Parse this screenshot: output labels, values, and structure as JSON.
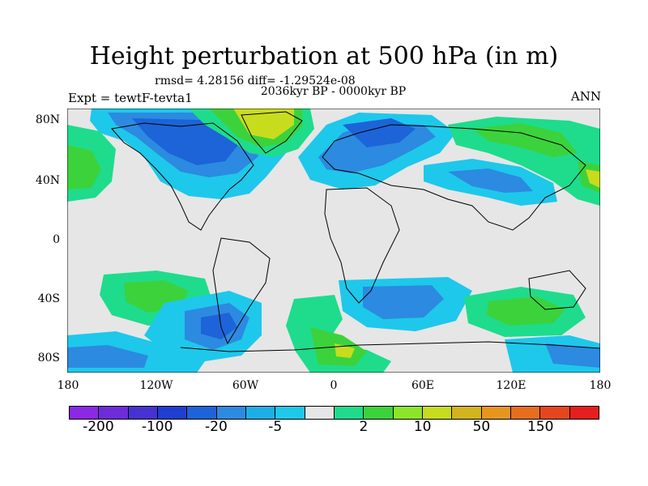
{
  "title": "Height perturbation at 500 hPa (in m)",
  "stats": "rmsd= 4.28156 diff= -1.29524e-08",
  "subtitle": "2036kyr BP - 0000kyr BP",
  "left_label": "Expt = tewtF-tevta1",
  "right_label": "ANN",
  "lat_labels": [
    "80N",
    "40N",
    "0",
    "40S",
    "80S"
  ],
  "lon_labels": [
    "180",
    "120W",
    "60W",
    "0",
    "60E",
    "120E",
    "180"
  ],
  "colorbar": {
    "colors": [
      "#8c28e6",
      "#6e2bd9",
      "#4632d2",
      "#1f3fd0",
      "#1c64d8",
      "#2c8ae0",
      "#1eaee6",
      "#1ec8ea",
      "#e6e6e6",
      "#1edc8c",
      "#3cd23c",
      "#8ce628",
      "#c8dc1e",
      "#d2b41e",
      "#e6961e",
      "#e66e1e",
      "#e6461e",
      "#e61e1e"
    ],
    "labels": [
      "-200",
      "-100",
      "-20",
      "-5",
      "2",
      "10",
      "50",
      "150"
    ]
  },
  "map_colors": {
    "background": "#e6e6e6",
    "neg_light": "#1ec8ea",
    "neg_mid": "#2c8ae0",
    "neg_dark": "#1c64d8",
    "pos_light": "#1edc8c",
    "pos_mid": "#3cd23c",
    "pos_high": "#c8dc1e",
    "pos_max": "#e6961e",
    "coast": "#000000"
  }
}
